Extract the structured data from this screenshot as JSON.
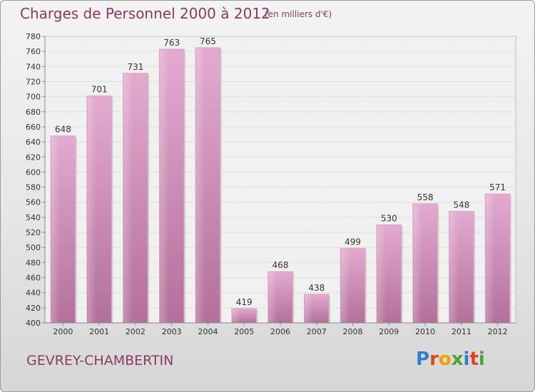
{
  "header": {
    "title": "Charges de Personnel 2000 à 2012",
    "subtitle": "(en milliers d'€)"
  },
  "footer": {
    "commune": "GEVREY-CHAMBERTIN",
    "brand": "Proxiti"
  },
  "colors": {
    "title": "#8a3b62",
    "bar_top": "#e0a6ca",
    "bar_bottom": "#b06a96",
    "grid": "#c8c8c8"
  },
  "chart_data": {
    "type": "bar",
    "title": "Charges de Personnel 2000 à 2012",
    "subtitle": "(en milliers d'€)",
    "categories": [
      "2000",
      "2001",
      "2002",
      "2003",
      "2004",
      "2005",
      "2006",
      "2007",
      "2008",
      "2009",
      "2010",
      "2011",
      "2012"
    ],
    "values": [
      648,
      701,
      731,
      763,
      765,
      419,
      468,
      438,
      499,
      530,
      558,
      548,
      571
    ],
    "data_labels": [
      "648",
      "701",
      "731",
      "763",
      "765",
      "419",
      "468",
      "438",
      "499",
      "530",
      "558",
      "548",
      "571"
    ],
    "ylim": [
      400,
      780
    ],
    "yticks": [
      "400",
      "420",
      "440",
      "460",
      "480",
      "500",
      "520",
      "540",
      "560",
      "580",
      "600",
      "620",
      "640",
      "660",
      "680",
      "700",
      "720",
      "740",
      "760",
      "780"
    ],
    "grid": true,
    "legend": "none"
  }
}
